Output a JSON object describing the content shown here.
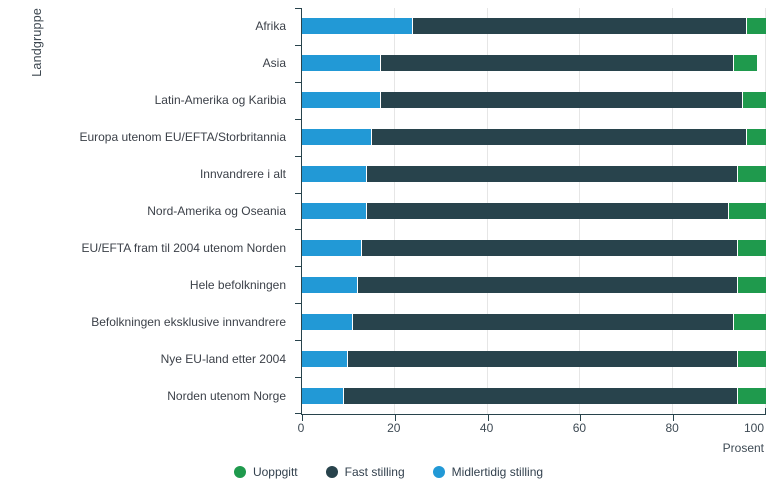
{
  "chart": {
    "y_axis_title": "Landgruppe",
    "x_axis_title": "Prosent",
    "x_ticks": [
      "0",
      "20",
      "40",
      "60",
      "80",
      "100"
    ]
  },
  "legend": {
    "items": [
      {
        "label": "Uoppgitt",
        "color": "#1f9a4d"
      },
      {
        "label": "Fast stilling",
        "color": "#28434c"
      },
      {
        "label": "Midlertidig stilling",
        "color": "#2299d6"
      }
    ]
  },
  "colors": {
    "midlertidig": "#2299d6",
    "fast": "#28434c",
    "uoppgitt": "#1f9a4d",
    "gridline": "#e6e6e6",
    "axis": "#28434c"
  },
  "chart_data": {
    "type": "bar",
    "orientation": "horizontal",
    "stacked": true,
    "title": "",
    "xlabel": "Prosent",
    "ylabel": "Landgruppe",
    "xlim": [
      0,
      100
    ],
    "x_tick_values": [
      0,
      20,
      40,
      60,
      80,
      100
    ],
    "grid": true,
    "legend_position": "bottom-center",
    "legend_order": [
      "Uoppgitt",
      "Fast stilling",
      "Midlertidig stilling"
    ],
    "stack_order_note": "segments drawn left to right: Midlertidig stilling, Fast stilling, Uoppgitt",
    "categories": [
      "Afrika",
      "Asia",
      "Latin-Amerika og Karibia",
      "Europa utenom EU/EFTA/Storbritannia",
      "Innvandrere i alt",
      "Nord-Amerika og Oseania",
      "EU/EFTA fram til 2004 utenom Norden",
      "Hele befolkningen",
      "Befolkningen eksklusive innvandrere",
      "Nye EU-land etter 2004",
      "Norden utenom Norge"
    ],
    "series": [
      {
        "name": "Midlertidig stilling",
        "color": "#2299d6",
        "values": [
          24,
          17,
          17,
          15,
          14,
          14,
          13,
          12,
          11,
          10,
          9
        ]
      },
      {
        "name": "Fast stilling",
        "color": "#28434c",
        "values": [
          72,
          76,
          78,
          81,
          80,
          78,
          81,
          82,
          82,
          84,
          85
        ]
      },
      {
        "name": "Uoppgitt",
        "color": "#1f9a4d",
        "values": [
          4,
          5,
          5,
          4,
          6,
          8,
          6,
          6,
          7,
          6,
          6
        ]
      }
    ]
  }
}
